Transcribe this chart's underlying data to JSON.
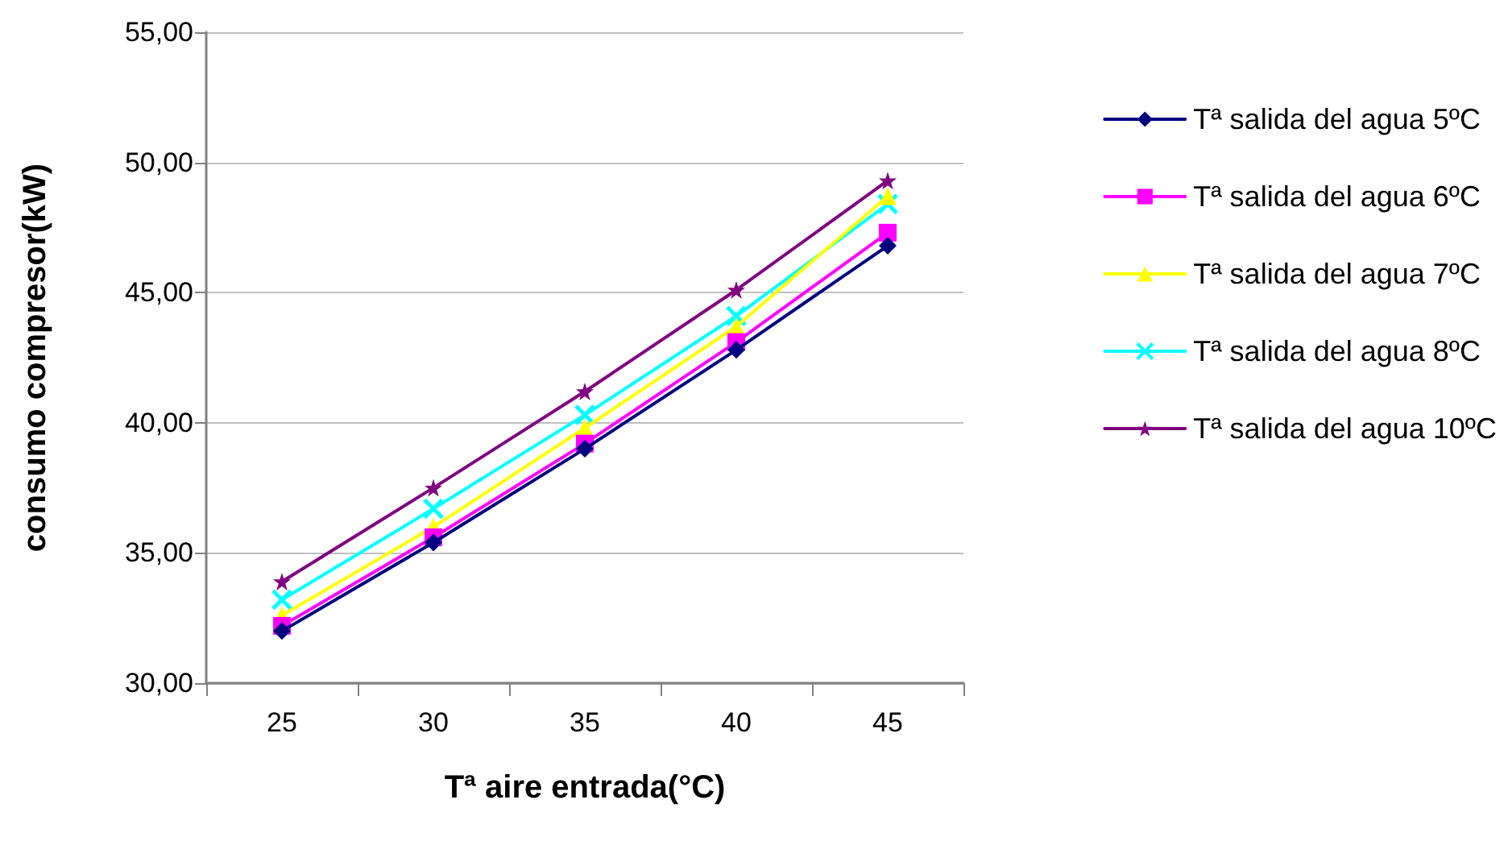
{
  "chart_data": {
    "type": "line",
    "xlabel": "Tª aire entrada(°C)",
    "ylabel": "consumo compresor(kW)",
    "categories": [
      "25",
      "30",
      "35",
      "40",
      "45"
    ],
    "series": [
      {
        "name": "Tª salida del agua 5ºC",
        "color": "#000080",
        "marker": "diamond",
        "values": [
          32.0,
          35.4,
          39.0,
          42.8,
          46.8
        ]
      },
      {
        "name": "Tª salida del agua 6ºC",
        "color": "#ff00ff",
        "marker": "square",
        "values": [
          32.2,
          35.6,
          39.2,
          43.1,
          47.3
        ]
      },
      {
        "name": "Tª salida del agua 7ºC",
        "color": "#ffff00",
        "marker": "triangle",
        "values": [
          32.6,
          36.0,
          39.8,
          43.7,
          48.7
        ]
      },
      {
        "name": "Tª salida del agua 8ºC",
        "color": "#00ffff",
        "marker": "cross",
        "values": [
          33.2,
          36.7,
          40.3,
          44.1,
          48.4
        ]
      },
      {
        "name": "Tª salida del agua 10ºC",
        "color": "#800080",
        "marker": "star",
        "values": [
          33.9,
          37.5,
          41.2,
          45.1,
          49.3
        ]
      }
    ],
    "ylim": [
      30,
      55
    ],
    "yticks": [
      {
        "value": 30,
        "label": "30,00"
      },
      {
        "value": 35,
        "label": "35,00"
      },
      {
        "value": 40,
        "label": "40,00"
      },
      {
        "value": 45,
        "label": "45,00"
      },
      {
        "value": 50,
        "label": "50,00"
      },
      {
        "value": 55,
        "label": "55,00"
      }
    ],
    "grid": "y",
    "legend": "right",
    "line_style": "solid"
  }
}
